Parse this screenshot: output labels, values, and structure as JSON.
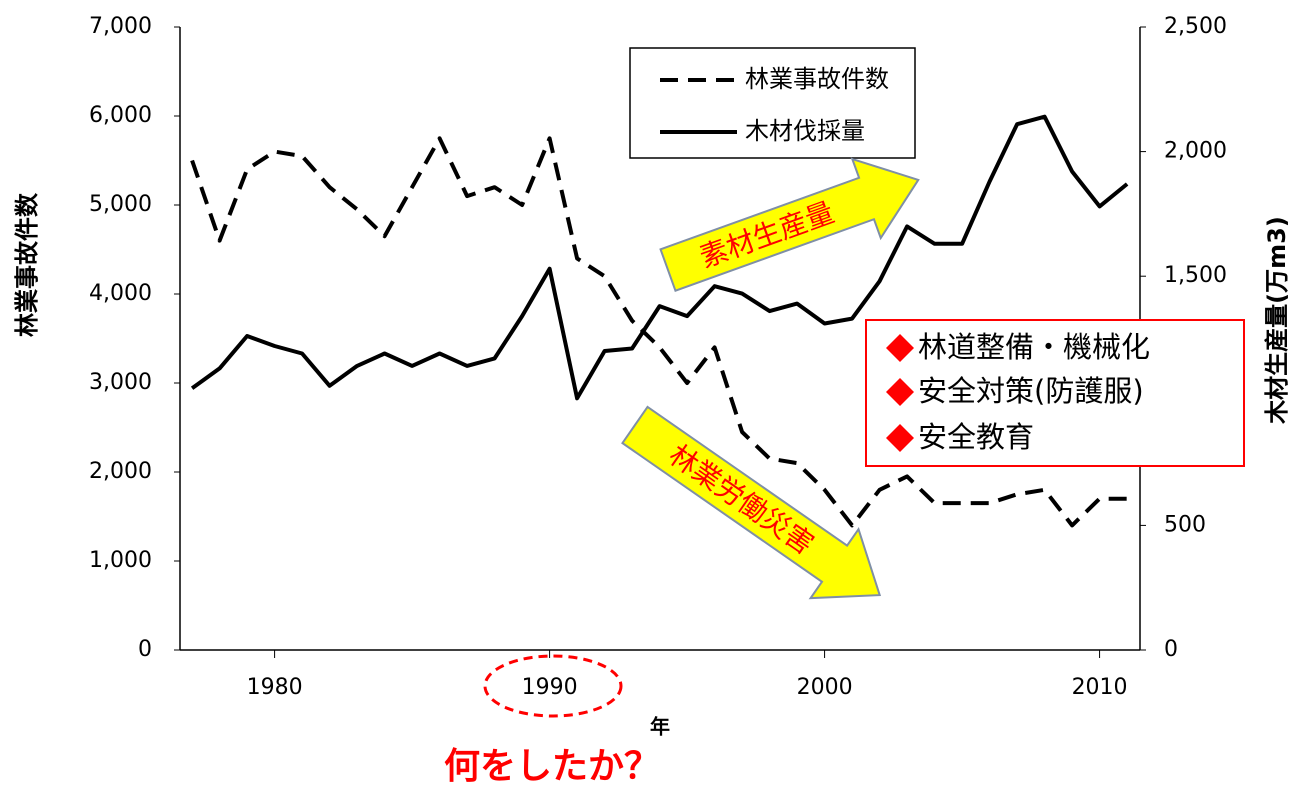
{
  "chart_data": {
    "type": "line",
    "x": [
      1977,
      1978,
      1979,
      1980,
      1981,
      1982,
      1983,
      1984,
      1985,
      1986,
      1987,
      1988,
      1989,
      1990,
      1991,
      1992,
      1993,
      1994,
      1995,
      1996,
      1997,
      1998,
      1999,
      2000,
      2001,
      2002,
      2003,
      2004,
      2005,
      2006,
      2007,
      2008,
      2009,
      2010,
      2011
    ],
    "xlim": [
      1976.56,
      2011.47
    ],
    "xticks": [
      1980,
      1990,
      2000,
      2010
    ],
    "xlabel": "年",
    "ylim": [
      0,
      7000
    ],
    "yticks": [
      0,
      {
        "value": 1000,
        "label": "1,000"
      },
      {
        "value": 2000,
        "label": "2,000"
      },
      {
        "value": 3000,
        "label": "3,000"
      },
      {
        "value": 4000,
        "label": "4,000"
      },
      {
        "value": 5000,
        "label": "5,000"
      },
      {
        "value": 6000,
        "label": "6,000"
      },
      {
        "value": 7000,
        "label": "7,000"
      }
    ],
    "ylabel": "林業事故件数",
    "y2lim": [
      0,
      2500
    ],
    "y2ticks": [
      0,
      500,
      {
        "value": 1000,
        "label": "1,000"
      },
      {
        "value": 1500,
        "label": "1,500"
      },
      {
        "value": 2000,
        "label": "2,000"
      },
      {
        "value": 2500,
        "label": "2,500"
      }
    ],
    "y2label": "木材生産量(万m3)",
    "series": [
      {
        "name": "林業事故件数",
        "color": "#000000",
        "dash": true,
        "values": [
          5500,
          4600,
          5400,
          5600,
          5550,
          5200,
          4950,
          4650,
          5200,
          5750,
          5100,
          5200,
          5000,
          5750,
          4400,
          4200,
          3700,
          3400,
          3000,
          3400,
          2450,
          2150,
          2100,
          1800,
          1400,
          1800,
          1950,
          1650,
          1650,
          1650,
          1750,
          1800,
          1400,
          1700,
          1700
        ]
      },
      {
        "name": "木材伐採量",
        "color": "#000000",
        "dash": false,
        "axis": "y2",
        "values": [
          1050,
          1130,
          1260,
          1220,
          1190,
          1060,
          1140,
          1190,
          1140,
          1190,
          1140,
          1170,
          1340,
          1530,
          1010,
          1200,
          1210,
          1380,
          1340,
          1460,
          1430,
          1360,
          1390,
          1310,
          1330,
          1480,
          1700,
          1630,
          1630,
          1880,
          2110,
          2140,
          1920,
          1780,
          1870
        ]
      }
    ],
    "annotations": {
      "arrow_up": "素材生産量",
      "arrow_down": "林業労働災害",
      "box": [
        "林道整備・機械化",
        "安全対策(防護服)",
        "安全教育"
      ],
      "question": "何をしたか？"
    }
  }
}
